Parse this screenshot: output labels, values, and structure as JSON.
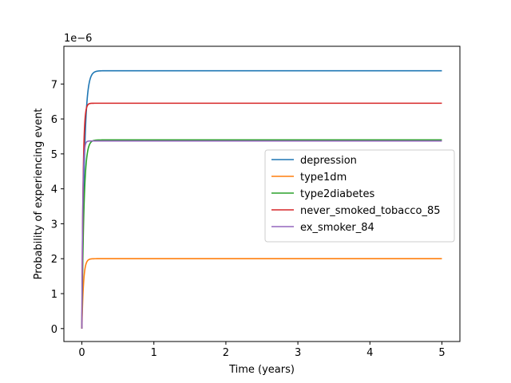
{
  "chart_data": {
    "type": "line",
    "title": "",
    "xlabel": "Time (years)",
    "ylabel": "Probability of experiencing event",
    "y_offset_text": "1e−6",
    "xlim": [
      -0.25,
      5.25
    ],
    "ylim": [
      -0.37,
      8.08
    ],
    "xticks": [
      0,
      1,
      2,
      3,
      4,
      5
    ],
    "xtick_labels": [
      "0",
      "1",
      "2",
      "3",
      "4",
      "5"
    ],
    "yticks": [
      0,
      1,
      2,
      3,
      4,
      5,
      6,
      7
    ],
    "ytick_labels": [
      "0",
      "1",
      "2",
      "3",
      "4",
      "5",
      "6",
      "7"
    ],
    "y_scale_factor": 1e-06,
    "grid": false,
    "legend_position": "center-right",
    "series": [
      {
        "name": "depression",
        "color": "#1f77b4",
        "plateau": 7.38,
        "rise_rate": 30
      },
      {
        "name": "type1dm",
        "color": "#ff7f0e",
        "plateau": 2.0,
        "rise_rate": 45
      },
      {
        "name": "type2diabetes",
        "color": "#2ca02c",
        "plateau": 5.4,
        "rise_rate": 35
      },
      {
        "name": "never_smoked_tobacco_85",
        "color": "#d62728",
        "plateau": 6.45,
        "rise_rate": 60
      },
      {
        "name": "ex_smoker_84",
        "color": "#9467bd",
        "plateau": 5.37,
        "rise_rate": 80
      }
    ],
    "x_range": [
      0,
      5
    ]
  }
}
